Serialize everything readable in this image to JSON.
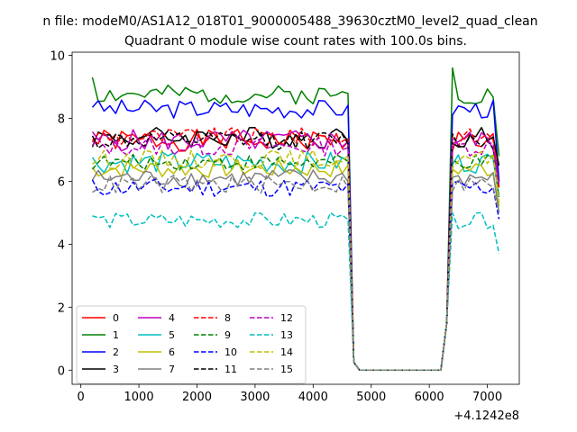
{
  "chart_data": {
    "type": "line",
    "suptitle": "n file: modeM0/AS1A12_018T01_9000005488_39630cztM0_level2_quad_clean",
    "title": "Quadrant 0 module wise count rates with 100.0s bins.",
    "xlabel": "",
    "ylabel": "",
    "x_offset_label": "+4.1242e8",
    "xlim": [
      -150,
      7550
    ],
    "ylim": [
      -0.45,
      10.1
    ],
    "xticks": [
      0,
      1000,
      2000,
      3000,
      4000,
      5000,
      6000,
      7000
    ],
    "yticks": [
      0,
      2,
      4,
      6,
      8,
      10
    ],
    "legend_position": "lower-left",
    "legend_columns": 4,
    "series": [
      {
        "name": "0",
        "color": "#ff0000",
        "dash": "solid",
        "base": 7.3,
        "amp": 0.35,
        "end": 5.8
      },
      {
        "name": "1",
        "color": "#008000",
        "dash": "solid",
        "base": 8.75,
        "amp": 0.3,
        "start": 9.3,
        "peak": 9.6,
        "end": 6.8
      },
      {
        "name": "2",
        "color": "#0000ff",
        "dash": "solid",
        "base": 8.3,
        "amp": 0.3,
        "start": 8.35,
        "end": 6.0
      },
      {
        "name": "3",
        "color": "#000000",
        "dash": "solid",
        "base": 7.4,
        "amp": 0.35,
        "end": 6.5
      },
      {
        "name": "4",
        "color": "#bf00bf",
        "dash": "solid",
        "base": 7.3,
        "amp": 0.35,
        "end": 5.9
      },
      {
        "name": "5",
        "color": "#00bfbf",
        "dash": "solid",
        "base": 6.6,
        "amp": 0.35,
        "end": 5.5
      },
      {
        "name": "6",
        "color": "#bfbf00",
        "dash": "solid",
        "base": 6.4,
        "amp": 0.3,
        "end": 5.2
      },
      {
        "name": "7",
        "color": "#808080",
        "dash": "solid",
        "base": 6.1,
        "amp": 0.3,
        "end": 5.0
      },
      {
        "name": "8",
        "color": "#ff0000",
        "dash": "dashed",
        "base": 7.4,
        "amp": 0.3,
        "end": 5.8
      },
      {
        "name": "9",
        "color": "#008000",
        "dash": "dashed",
        "base": 6.6,
        "amp": 0.25,
        "end": 5.5
      },
      {
        "name": "10",
        "color": "#0000ff",
        "dash": "dashed",
        "base": 5.8,
        "amp": 0.3,
        "end": 4.8
      },
      {
        "name": "11",
        "color": "#000000",
        "dash": "dashed",
        "base": 7.3,
        "amp": 0.3,
        "end": 6.0
      },
      {
        "name": "12",
        "color": "#bf00bf",
        "dash": "dashed",
        "base": 7.1,
        "amp": 0.3,
        "end": 5.9
      },
      {
        "name": "13",
        "color": "#00bfbf",
        "dash": "dashed",
        "base": 4.75,
        "amp": 0.25,
        "start": 4.9,
        "end": 3.7
      },
      {
        "name": "14",
        "color": "#bfbf00",
        "dash": "dashed",
        "base": 6.7,
        "amp": 0.3,
        "end": 5.3
      },
      {
        "name": "15",
        "color": "#808080",
        "dash": "dashed",
        "base": 5.9,
        "amp": 0.3,
        "end": 5.0
      }
    ],
    "time_profile": {
      "x_start": 200,
      "x_end": 7200,
      "bin": 100,
      "drop_start": 4600,
      "zero_start": 4800,
      "zero_end": 6200,
      "rise_end": 6400,
      "at_4700": 0.25,
      "at_6300": 1.5
    }
  }
}
